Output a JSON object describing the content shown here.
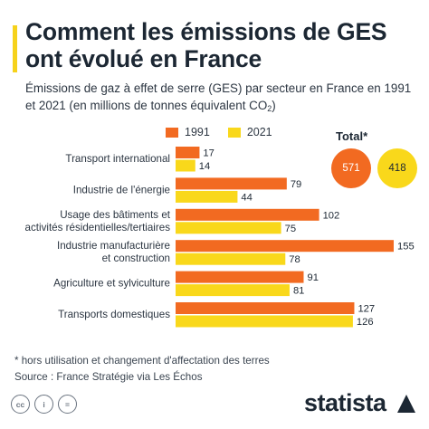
{
  "header": {
    "title": "Comment les émissions de GES ont évolué en France",
    "subtitle_main": "Émissions de gaz à effet de serre (GES) par secteur en France en 1991 et 2021 (en millions de tonnes équivalent CO",
    "subtitle_sub": "2",
    "subtitle_end": ")"
  },
  "colors": {
    "accent": "#f6d21b",
    "series_1991": "#f26a21",
    "series_2021": "#f9d81b"
  },
  "legend": {
    "items": [
      "1991",
      "2021"
    ]
  },
  "total": {
    "label": "Total*",
    "value_1991": "571",
    "value_2021": "418"
  },
  "chart_data": {
    "type": "bar",
    "orientation": "horizontal",
    "categories": [
      [
        "Transport international"
      ],
      [
        "Industrie de l'énergie"
      ],
      [
        "Usage des bâtiments et",
        "activités résidentielles/tertiaires"
      ],
      [
        "Industrie manufacturière",
        "et construction"
      ],
      [
        "Agriculture et sylviculture"
      ],
      [
        "Transports domestiques"
      ]
    ],
    "series": [
      {
        "name": "1991",
        "values": [
          17,
          79,
          102,
          155,
          91,
          127
        ]
      },
      {
        "name": "2021",
        "values": [
          14,
          44,
          75,
          78,
          81,
          126
        ]
      }
    ],
    "legend": "top"
  },
  "footer": {
    "note": "* hors utilisation et changement d'affectation des terres",
    "source": "Source : France Stratégie via Les Échos",
    "brand": "statista",
    "cc_icons": [
      "cc-icon",
      "by-icon",
      "equals-icon"
    ]
  }
}
